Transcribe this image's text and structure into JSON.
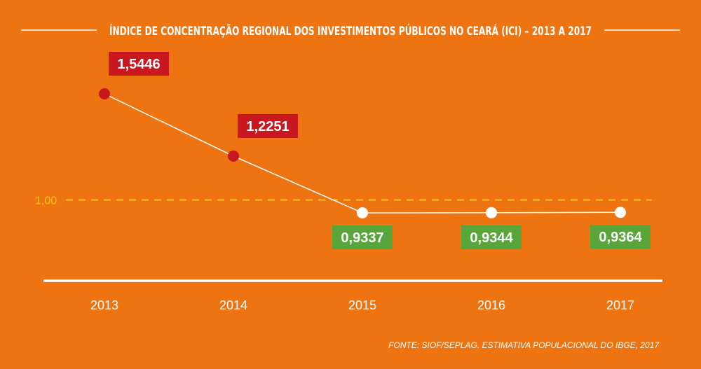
{
  "chart_data": {
    "type": "line",
    "title": "ÍNDICE DE CONCENTRAÇÃO REGIONAL DOS INVESTIMENTOS PÚBLICOS NO CEARÁ (ICI) – 2013 A 2017",
    "categories": [
      "2013",
      "2014",
      "2015",
      "2016",
      "2017"
    ],
    "values": [
      1.5446,
      1.2251,
      0.9337,
      0.9344,
      0.9364
    ],
    "data_labels": [
      "1,5446",
      "1,2251",
      "0,9337",
      "0,9344",
      "0,9364"
    ],
    "reference_line": {
      "value": 1.0,
      "label": "1,00",
      "style": "dashed",
      "color": "#f8c21a"
    },
    "colors": {
      "background": "#ee7412",
      "above": "#c8171e",
      "below": "#58a63a",
      "line": "#ffffff"
    },
    "grid": false,
    "legend": "none",
    "source": "FONTE: SIOF/SEPLAG. ESTIMATIVA POPULACIONAL DO IBGE, 2017"
  }
}
